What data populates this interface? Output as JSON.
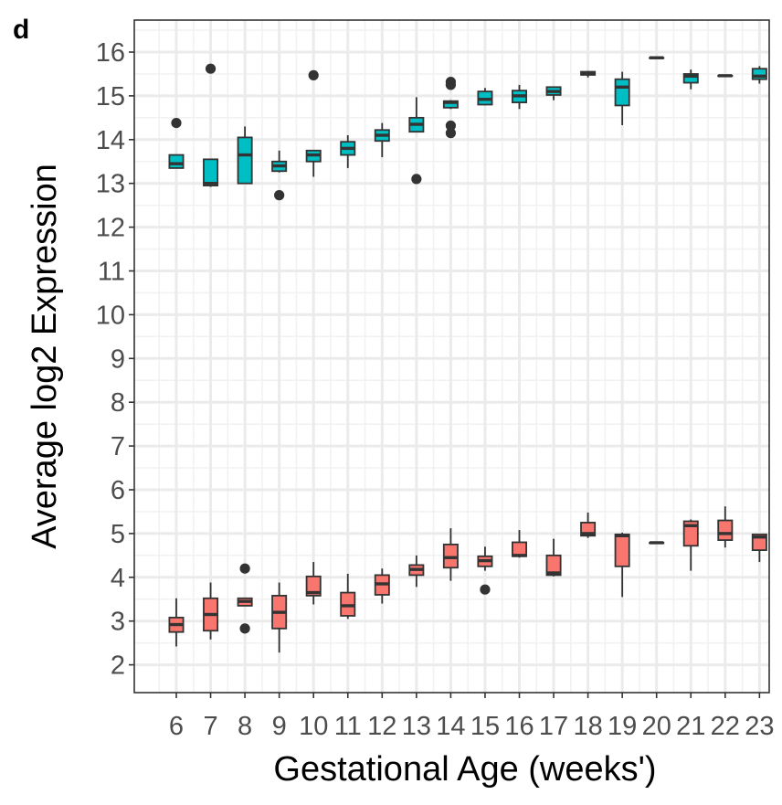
{
  "panel_label": "d",
  "chart_data": {
    "type": "box",
    "title": "",
    "xlabel": "Gestational Age (weeks')",
    "ylabel": "Average log2 Expression",
    "categories": [
      "6",
      "7",
      "8",
      "9",
      "10",
      "11",
      "12",
      "13",
      "14",
      "15",
      "16",
      "17",
      "18",
      "19",
      "20",
      "21",
      "22",
      "23"
    ],
    "ylim": [
      1.6,
      16.7
    ],
    "yticks": [
      2,
      3,
      4,
      5,
      6,
      7,
      8,
      9,
      10,
      11,
      12,
      13,
      14,
      15,
      16
    ],
    "grid": true,
    "legend": "none",
    "series": [
      {
        "color": "#00BFC4",
        "boxes": [
          {
            "x": "6",
            "min": 13.35,
            "q1": 13.35,
            "median": 13.45,
            "q3": 13.65,
            "max": 13.65,
            "outliers": [
              14.38
            ]
          },
          {
            "x": "7",
            "min": 12.92,
            "q1": 12.95,
            "median": 13.0,
            "q3": 13.55,
            "max": 13.55,
            "outliers": [
              15.62
            ]
          },
          {
            "x": "8",
            "min": 13.0,
            "q1": 13.0,
            "median": 13.65,
            "q3": 14.05,
            "max": 14.3,
            "outliers": []
          },
          {
            "x": "9",
            "min": 13.25,
            "q1": 13.28,
            "median": 13.4,
            "q3": 13.5,
            "max": 13.75,
            "outliers": [
              12.73
            ]
          },
          {
            "x": "10",
            "min": 13.15,
            "q1": 13.5,
            "median": 13.65,
            "q3": 13.75,
            "max": 13.75,
            "outliers": [
              15.47
            ]
          },
          {
            "x": "11",
            "min": 13.35,
            "q1": 13.65,
            "median": 13.8,
            "q3": 13.95,
            "max": 14.1,
            "outliers": []
          },
          {
            "x": "12",
            "min": 13.6,
            "q1": 13.97,
            "median": 14.1,
            "q3": 14.22,
            "max": 14.38,
            "outliers": []
          },
          {
            "x": "13",
            "min": 14.18,
            "q1": 14.18,
            "median": 14.35,
            "q3": 14.5,
            "max": 14.97,
            "outliers": [
              13.1
            ]
          },
          {
            "x": "14",
            "min": 14.7,
            "q1": 14.73,
            "median": 14.85,
            "q3": 14.88,
            "max": 14.9,
            "outliers": [
              15.32,
              15.25,
              14.32,
              14.15
            ]
          },
          {
            "x": "15",
            "min": 14.78,
            "q1": 14.8,
            "median": 14.92,
            "q3": 15.1,
            "max": 15.18,
            "outliers": []
          },
          {
            "x": "16",
            "min": 14.7,
            "q1": 14.85,
            "median": 15.0,
            "q3": 15.12,
            "max": 15.25,
            "outliers": []
          },
          {
            "x": "17",
            "min": 14.9,
            "q1": 15.02,
            "median": 15.1,
            "q3": 15.2,
            "max": 15.2,
            "outliers": []
          },
          {
            "x": "18",
            "min": 15.42,
            "q1": 15.48,
            "median": 15.5,
            "q3": 15.55,
            "max": 15.57,
            "outliers": []
          },
          {
            "x": "19",
            "min": 14.33,
            "q1": 14.78,
            "median": 15.2,
            "q3": 15.38,
            "max": 15.55,
            "outliers": []
          },
          {
            "x": "20",
            "min": 15.87,
            "q1": 15.87,
            "median": 15.87,
            "q3": 15.87,
            "max": 15.87,
            "outliers": []
          },
          {
            "x": "21",
            "min": 15.15,
            "q1": 15.3,
            "median": 15.45,
            "q3": 15.5,
            "max": 15.6,
            "outliers": []
          },
          {
            "x": "22",
            "min": 15.46,
            "q1": 15.46,
            "median": 15.46,
            "q3": 15.46,
            "max": 15.46,
            "outliers": []
          },
          {
            "x": "23",
            "min": 15.28,
            "q1": 15.38,
            "median": 15.45,
            "q3": 15.62,
            "max": 15.68,
            "outliers": []
          }
        ]
      },
      {
        "color": "#F8766D",
        "boxes": [
          {
            "x": "6",
            "min": 2.42,
            "q1": 2.75,
            "median": 2.92,
            "q3": 3.08,
            "max": 3.52,
            "outliers": []
          },
          {
            "x": "7",
            "min": 2.58,
            "q1": 2.78,
            "median": 3.15,
            "q3": 3.52,
            "max": 3.88,
            "outliers": []
          },
          {
            "x": "8",
            "min": 3.35,
            "q1": 3.35,
            "median": 3.45,
            "q3": 3.52,
            "max": 3.52,
            "outliers": [
              4.2,
              2.83
            ]
          },
          {
            "x": "9",
            "min": 2.28,
            "q1": 2.83,
            "median": 3.2,
            "q3": 3.58,
            "max": 3.88,
            "outliers": []
          },
          {
            "x": "10",
            "min": 3.38,
            "q1": 3.58,
            "median": 3.65,
            "q3": 4.02,
            "max": 4.35,
            "outliers": []
          },
          {
            "x": "11",
            "min": 3.05,
            "q1": 3.12,
            "median": 3.35,
            "q3": 3.65,
            "max": 4.08,
            "outliers": []
          },
          {
            "x": "12",
            "min": 3.4,
            "q1": 3.6,
            "median": 3.85,
            "q3": 4.05,
            "max": 4.2,
            "outliers": []
          },
          {
            "x": "13",
            "min": 3.78,
            "q1": 4.05,
            "median": 4.18,
            "q3": 4.28,
            "max": 4.5,
            "outliers": []
          },
          {
            "x": "14",
            "min": 3.92,
            "q1": 4.22,
            "median": 4.45,
            "q3": 4.75,
            "max": 5.12,
            "outliers": []
          },
          {
            "x": "15",
            "min": 4.15,
            "q1": 4.25,
            "median": 4.38,
            "q3": 4.48,
            "max": 4.7,
            "outliers": [
              3.72
            ]
          },
          {
            "x": "16",
            "min": 4.45,
            "q1": 4.48,
            "median": 4.5,
            "q3": 4.8,
            "max": 5.08,
            "outliers": []
          },
          {
            "x": "17",
            "min": 4.02,
            "q1": 4.05,
            "median": 4.1,
            "q3": 4.5,
            "max": 4.88,
            "outliers": []
          },
          {
            "x": "18",
            "min": 4.9,
            "q1": 4.95,
            "median": 5.0,
            "q3": 5.25,
            "max": 5.48,
            "outliers": []
          },
          {
            "x": "19",
            "min": 3.55,
            "q1": 4.25,
            "median": 4.95,
            "q3": 4.98,
            "max": 5.02,
            "outliers": []
          },
          {
            "x": "20",
            "min": 4.79,
            "q1": 4.79,
            "median": 4.79,
            "q3": 4.79,
            "max": 4.79,
            "outliers": []
          },
          {
            "x": "21",
            "min": 4.15,
            "q1": 4.72,
            "median": 5.18,
            "q3": 5.28,
            "max": 5.32,
            "outliers": []
          },
          {
            "x": "22",
            "min": 4.68,
            "q1": 4.85,
            "median": 5.0,
            "q3": 5.3,
            "max": 5.62,
            "outliers": []
          },
          {
            "x": "23",
            "min": 4.35,
            "q1": 4.62,
            "median": 4.92,
            "q3": 4.98,
            "max": 4.98,
            "outliers": []
          }
        ]
      }
    ]
  }
}
